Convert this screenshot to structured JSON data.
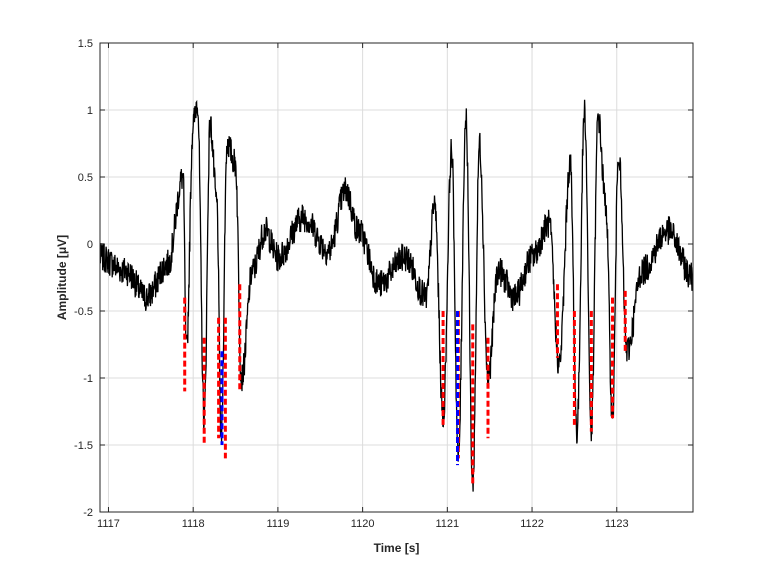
{
  "chart_data": {
    "type": "line",
    "title": "",
    "xlabel": "Time [s]",
    "ylabel": "Amplitude [μV]",
    "xlim": [
      1116.9,
      1123.9
    ],
    "ylim": [
      -2,
      1.5
    ],
    "x_ticks": [
      "1117",
      "1118",
      "1119",
      "1120",
      "1121",
      "1122",
      "1123"
    ],
    "y_ticks": [
      "-2",
      "-1.5",
      "-1",
      "-0.5",
      "0",
      "0.5",
      "1",
      "1.5"
    ],
    "grid": true,
    "legend": "none",
    "series": [
      {
        "color": "#000000",
        "style": "solid",
        "description_points": [
          [
            1116.9,
            -0.1
          ],
          [
            1117.2,
            -0.2
          ],
          [
            1117.45,
            -0.4
          ],
          [
            1117.7,
            -0.15
          ],
          [
            1117.88,
            0.5
          ],
          [
            1117.92,
            -0.8
          ],
          [
            1118.0,
            0.9
          ],
          [
            1118.05,
            1.07
          ],
          [
            1118.13,
            -1.3
          ],
          [
            1118.2,
            0.9
          ],
          [
            1118.28,
            0.3
          ],
          [
            1118.33,
            -1.45
          ],
          [
            1118.4,
            0.75
          ],
          [
            1118.5,
            0.6
          ],
          [
            1118.57,
            -1.0
          ],
          [
            1118.7,
            -0.2
          ],
          [
            1118.85,
            0.1
          ],
          [
            1119.0,
            -0.1
          ],
          [
            1119.3,
            0.2
          ],
          [
            1119.6,
            -0.05
          ],
          [
            1119.8,
            0.4
          ],
          [
            1119.95,
            0.1
          ],
          [
            1120.2,
            -0.3
          ],
          [
            1120.5,
            -0.1
          ],
          [
            1120.75,
            -0.4
          ],
          [
            1120.85,
            0.3
          ],
          [
            1120.95,
            -1.3
          ],
          [
            1121.05,
            0.7
          ],
          [
            1121.13,
            -1.6
          ],
          [
            1121.22,
            0.95
          ],
          [
            1121.3,
            -1.8
          ],
          [
            1121.38,
            0.75
          ],
          [
            1121.48,
            -1.0
          ],
          [
            1121.6,
            -0.2
          ],
          [
            1121.8,
            -0.4
          ],
          [
            1122.0,
            -0.1
          ],
          [
            1122.2,
            0.15
          ],
          [
            1122.32,
            -0.9
          ],
          [
            1122.45,
            0.6
          ],
          [
            1122.53,
            -1.4
          ],
          [
            1122.62,
            1.0
          ],
          [
            1122.7,
            -1.4
          ],
          [
            1122.78,
            0.95
          ],
          [
            1122.87,
            0.3
          ],
          [
            1122.95,
            -1.3
          ],
          [
            1123.02,
            0.7
          ],
          [
            1123.12,
            -0.8
          ],
          [
            1123.3,
            -0.2
          ],
          [
            1123.6,
            0.1
          ],
          [
            1123.9,
            -0.25
          ]
        ]
      },
      {
        "color": "#ff0000",
        "style": "dashed",
        "segments": [
          [
            1117.9,
            -0.4,
            -1.1
          ],
          [
            1118.13,
            -0.7,
            -1.5
          ],
          [
            1118.3,
            -0.55,
            -1.45
          ],
          [
            1118.38,
            -0.55,
            -1.6
          ],
          [
            1118.55,
            -0.3,
            -1.1
          ],
          [
            1120.95,
            -0.5,
            -1.35
          ],
          [
            1121.13,
            -0.5,
            -1.6
          ],
          [
            1121.3,
            -0.6,
            -1.8
          ],
          [
            1121.48,
            -0.7,
            -1.45
          ],
          [
            1122.3,
            -0.3,
            -0.85
          ],
          [
            1122.5,
            -0.5,
            -1.35
          ],
          [
            1122.7,
            -0.5,
            -1.4
          ],
          [
            1122.95,
            -0.4,
            -1.3
          ],
          [
            1123.1,
            -0.35,
            -0.8
          ]
        ]
      },
      {
        "color": "#0000ff",
        "style": "dashed",
        "segments": [
          [
            1118.34,
            -0.8,
            -1.5
          ],
          [
            1121.12,
            -0.5,
            -1.65
          ]
        ]
      }
    ]
  }
}
